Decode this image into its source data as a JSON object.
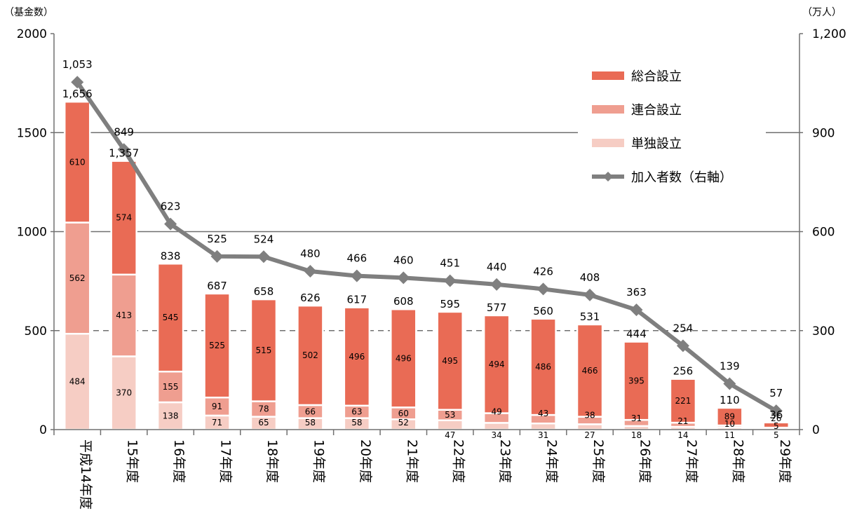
{
  "chart_data": {
    "type": "bar",
    "stacked": true,
    "categories": [
      "平成14年度",
      "15年度",
      "16年度",
      "17年度",
      "18年度",
      "19年度",
      "20年度",
      "21年度",
      "22年度",
      "23年度",
      "24年度",
      "25年度",
      "26年度",
      "27年度",
      "28年度",
      "29年度"
    ],
    "series": [
      {
        "name": "単独設立",
        "color": "#f6cdc4",
        "values": [
          484,
          370,
          138,
          71,
          65,
          58,
          58,
          52,
          47,
          34,
          31,
          27,
          18,
          14,
          11,
          5
        ]
      },
      {
        "name": "連合設立",
        "color": "#ef9e90",
        "values": [
          562,
          413,
          155,
          91,
          78,
          66,
          63,
          60,
          53,
          49,
          43,
          38,
          31,
          21,
          10,
          5
        ]
      },
      {
        "name": "総合設立",
        "color": "#e96b55",
        "values": [
          610,
          574,
          545,
          525,
          515,
          502,
          496,
          496,
          495,
          494,
          486,
          466,
          395,
          221,
          89,
          26
        ]
      }
    ],
    "totals": [
      1656,
      1357,
      838,
      687,
      658,
      626,
      617,
      608,
      595,
      577,
      560,
      531,
      444,
      256,
      110,
      36
    ],
    "line": {
      "name": "加入者数（右軸）",
      "color": "#7f7f7f",
      "values": [
        1053,
        849,
        623,
        525,
        524,
        480,
        466,
        460,
        451,
        440,
        426,
        408,
        363,
        254,
        139,
        57
      ]
    },
    "y_left": {
      "label": "（基金数）",
      "min": 0,
      "max": 2000,
      "ticks": [
        "0",
        "500",
        "1000",
        "1500",
        "2000"
      ]
    },
    "y_right": {
      "label": "（万人）",
      "min": 0,
      "max": 1200,
      "ticks": [
        "0",
        "300",
        "600",
        "900",
        "1,200"
      ]
    },
    "legend_position": "top-right",
    "grid": true
  }
}
